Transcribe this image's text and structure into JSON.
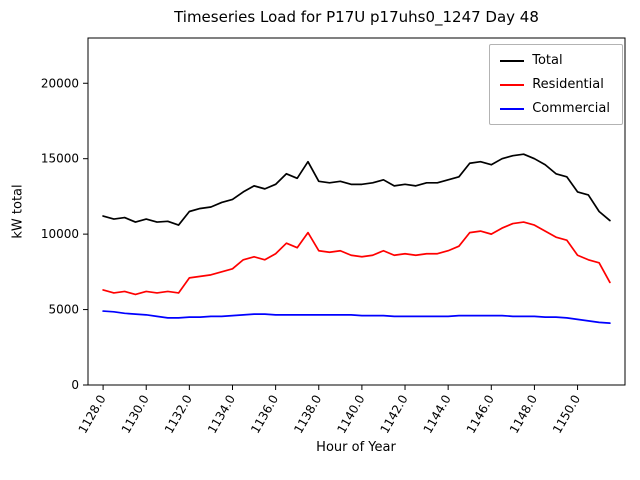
{
  "chart_data": {
    "type": "line",
    "title": "Timeseries Load for P17U p17uhs0_1247  Day 48",
    "xlabel": "Hour of Year",
    "ylabel": "kW total",
    "xlim": [
      1127.3,
      1152.2
    ],
    "ylim": [
      0,
      23000
    ],
    "grid": false,
    "legend_position": "upper right",
    "x_ticks": [
      1128,
      1130,
      1132,
      1134,
      1136,
      1138,
      1140,
      1142,
      1144,
      1146,
      1148,
      1150
    ],
    "x_tick_labels": [
      "1128.0",
      "1130.0",
      "1132.0",
      "1134.0",
      "1136.0",
      "1138.0",
      "1140.0",
      "1142.0",
      "1144.0",
      "1146.0",
      "1148.0",
      "1150.0"
    ],
    "y_ticks": [
      0,
      5000,
      10000,
      15000,
      20000
    ],
    "x": [
      1128.0,
      1128.5,
      1129.0,
      1129.5,
      1130.0,
      1130.5,
      1131.0,
      1131.5,
      1132.0,
      1132.5,
      1133.0,
      1133.5,
      1134.0,
      1134.5,
      1135.0,
      1135.5,
      1136.0,
      1136.5,
      1137.0,
      1137.5,
      1138.0,
      1138.5,
      1139.0,
      1139.5,
      1140.0,
      1140.5,
      1141.0,
      1141.5,
      1142.0,
      1142.5,
      1143.0,
      1143.5,
      1144.0,
      1144.5,
      1145.0,
      1145.5,
      1146.0,
      1146.5,
      1147.0,
      1147.5,
      1148.0,
      1148.5,
      1149.0,
      1149.5,
      1150.0,
      1150.5,
      1151.0,
      1151.5
    ],
    "series": [
      {
        "name": "Total",
        "color": "#000000",
        "values": [
          11200,
          11000,
          11100,
          10800,
          11000,
          10800,
          10850,
          10600,
          11500,
          11700,
          11800,
          12100,
          12300,
          12800,
          13200,
          13000,
          13300,
          14000,
          13700,
          14800,
          13500,
          13400,
          13500,
          13300,
          13300,
          13400,
          13600,
          13200,
          13300,
          13200,
          13400,
          13400,
          13600,
          13800,
          14700,
          14800,
          14600,
          15000,
          15200,
          15300,
          15000,
          14600,
          14000,
          13800,
          12800,
          12600,
          11500,
          10900
        ]
      },
      {
        "name": "Residential",
        "color": "#ff0000",
        "values": [
          6300,
          6100,
          6200,
          6000,
          6200,
          6100,
          6200,
          6100,
          7100,
          7200,
          7300,
          7500,
          7700,
          8300,
          8500,
          8300,
          8700,
          9400,
          9100,
          10100,
          8900,
          8800,
          8900,
          8600,
          8500,
          8600,
          8900,
          8600,
          8700,
          8600,
          8700,
          8700,
          8900,
          9200,
          10100,
          10200,
          10000,
          10400,
          10700,
          10800,
          10600,
          10200,
          9800,
          9600,
          8600,
          8300,
          8100,
          6800
        ]
      },
      {
        "name": "Commercial",
        "color": "#0000ff",
        "values": [
          4900,
          4850,
          4750,
          4700,
          4650,
          4550,
          4450,
          4450,
          4500,
          4500,
          4550,
          4550,
          4600,
          4650,
          4700,
          4700,
          4650,
          4650,
          4650,
          4650,
          4650,
          4650,
          4650,
          4650,
          4600,
          4600,
          4600,
          4550,
          4550,
          4550,
          4550,
          4550,
          4550,
          4600,
          4600,
          4600,
          4600,
          4600,
          4550,
          4550,
          4550,
          4500,
          4500,
          4450,
          4350,
          4250,
          4150,
          4100
        ]
      }
    ]
  }
}
